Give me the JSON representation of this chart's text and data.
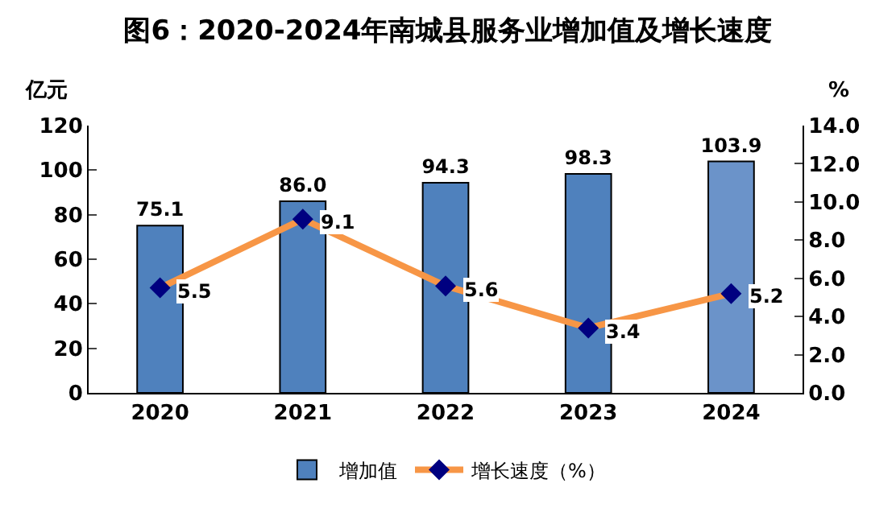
{
  "chart_data": {
    "type": "bar",
    "title": "图6：2020-2024年南城县服务业增加值及增长速度",
    "ylabel": "亿元",
    "y2label": "%",
    "categories": [
      "2020",
      "2021",
      "2022",
      "2023",
      "2024"
    ],
    "series": [
      {
        "name": "增加值",
        "colors": [
          "#4f81bd",
          "#4f81bd",
          "#4f81bd",
          "#4f81bd",
          "#6b93c9"
        ],
        "values": [
          75.1,
          86.0,
          94.3,
          98.3,
          103.9
        ],
        "value_labels": [
          "75.1",
          "86.0",
          "94.3",
          "98.3",
          "103.9"
        ]
      },
      {
        "name": "增长速度（%）",
        "type": "line",
        "axis": "y2",
        "color": "#f79646",
        "colors": [
          "#000080",
          "#000080",
          "#000080",
          "#000080",
          "#000080"
        ],
        "marker": "diamond",
        "values": [
          5.5,
          9.1,
          5.6,
          3.4,
          5.2
        ],
        "value_labels": [
          "5.5",
          "9.1",
          "5.6",
          "3.4",
          "5.2"
        ]
      }
    ],
    "ylim": [
      0,
      120
    ],
    "yticks": [
      0,
      20,
      40,
      60,
      80,
      100,
      120
    ],
    "y2lim": [
      0,
      14
    ],
    "y2ticks": [
      {
        "value": 0,
        "label": "0.0"
      },
      {
        "value": 2,
        "label": "2.0"
      },
      {
        "value": 4,
        "label": "4.0"
      },
      {
        "value": 6,
        "label": "6.0"
      },
      {
        "value": 8,
        "label": "8.0"
      },
      {
        "value": 10,
        "label": "10.0"
      },
      {
        "value": 12,
        "label": "12.0"
      },
      {
        "value": 14,
        "label": "14.0"
      }
    ],
    "legend": "bottom"
  }
}
